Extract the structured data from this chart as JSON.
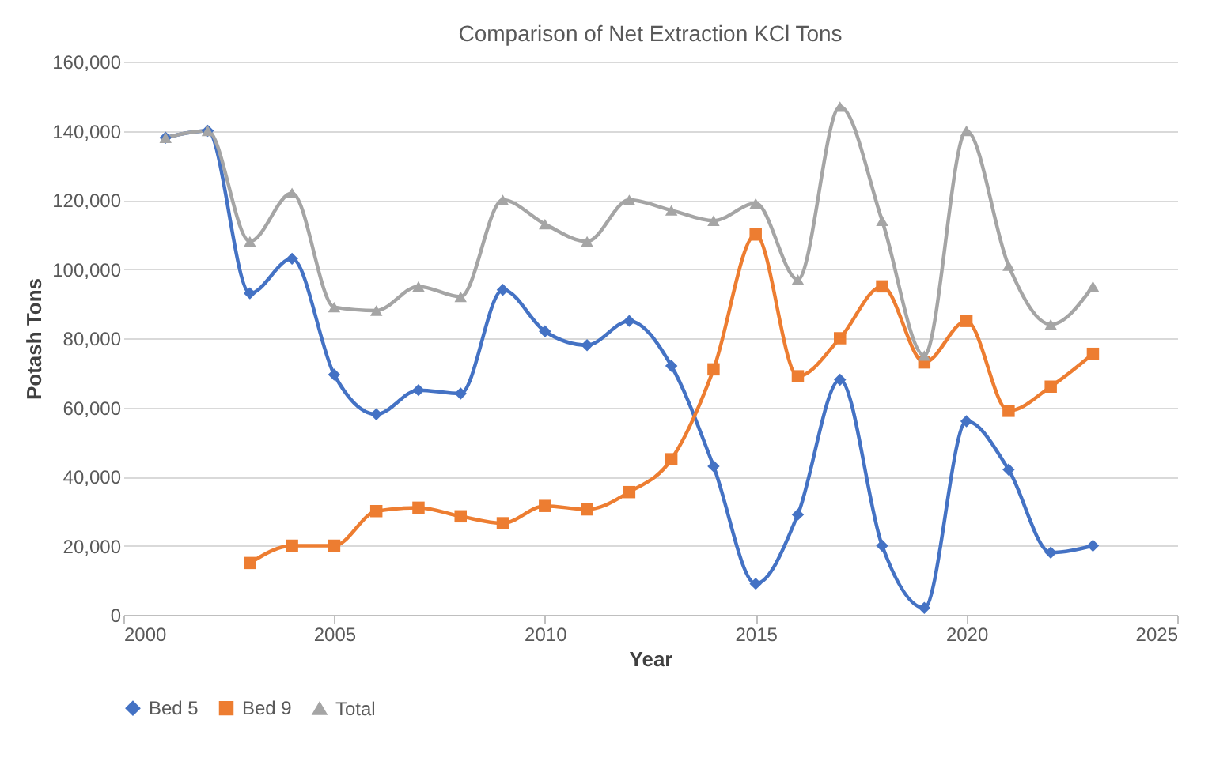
{
  "chart_data": {
    "type": "line",
    "title": "Comparison of Net Extraction KCl Tons",
    "xlabel": "Year",
    "ylabel": "Potash Tons",
    "xlim": [
      2000,
      2025
    ],
    "xticks": [
      2000,
      2005,
      2010,
      2015,
      2020,
      2025
    ],
    "ylim": [
      0,
      160000
    ],
    "yticks": [
      0,
      {
        "value": 20000,
        "label": "20,000"
      },
      {
        "value": 40000,
        "label": "40,000"
      },
      {
        "value": 60000,
        "label": "60,000"
      },
      {
        "value": 80000,
        "label": "80,000"
      },
      {
        "value": 100000,
        "label": "100,000"
      },
      {
        "value": 120000,
        "label": "120,000"
      },
      {
        "value": 140000,
        "label": "140,000"
      },
      {
        "value": 160000,
        "label": "160,000"
      }
    ],
    "grid": "y",
    "legend": "bottom",
    "line_style": "solid",
    "series": [
      {
        "name": "Bed 5",
        "color": "#4472c4",
        "marker": "diamond",
        "x": [
          2001,
          2002,
          2003,
          2004,
          2005,
          2006,
          2007,
          2008,
          2009,
          2010,
          2011,
          2012,
          2013,
          2014,
          2015,
          2016,
          2017,
          2018,
          2019,
          2020,
          2021,
          2022,
          2023
        ],
        "values": [
          138000,
          140000,
          93000,
          103000,
          69500,
          58000,
          65000,
          64000,
          94000,
          82000,
          78000,
          85000,
          72000,
          43000,
          9000,
          29000,
          68000,
          20000,
          2000,
          56000,
          42000,
          18000,
          20000
        ]
      },
      {
        "name": "Bed 9",
        "color": "#ed7d31",
        "marker": "square",
        "x": [
          2003,
          2004,
          2005,
          2006,
          2007,
          2008,
          2009,
          2010,
          2011,
          2012,
          2013,
          2014,
          2015,
          2016,
          2017,
          2018,
          2019,
          2020,
          2021,
          2022,
          2023
        ],
        "values": [
          15000,
          20000,
          20000,
          30000,
          31000,
          28500,
          26500,
          31500,
          30500,
          35500,
          45000,
          71000,
          110000,
          69000,
          80000,
          95000,
          73000,
          85000,
          59000,
          66000,
          75500
        ]
      },
      {
        "name": "Total",
        "color": "#a5a5a5",
        "marker": "triangle",
        "x": [
          2001,
          2002,
          2003,
          2004,
          2005,
          2006,
          2007,
          2008,
          2009,
          2010,
          2011,
          2012,
          2013,
          2014,
          2015,
          2016,
          2017,
          2018,
          2019,
          2020,
          2021,
          2022,
          2023
        ],
        "values": [
          138000,
          140000,
          108000,
          122000,
          89000,
          88000,
          95000,
          92000,
          120000,
          113000,
          108000,
          120000,
          117000,
          114000,
          119000,
          97000,
          147000,
          114000,
          75000,
          140000,
          101000,
          84000,
          95000
        ]
      }
    ]
  }
}
